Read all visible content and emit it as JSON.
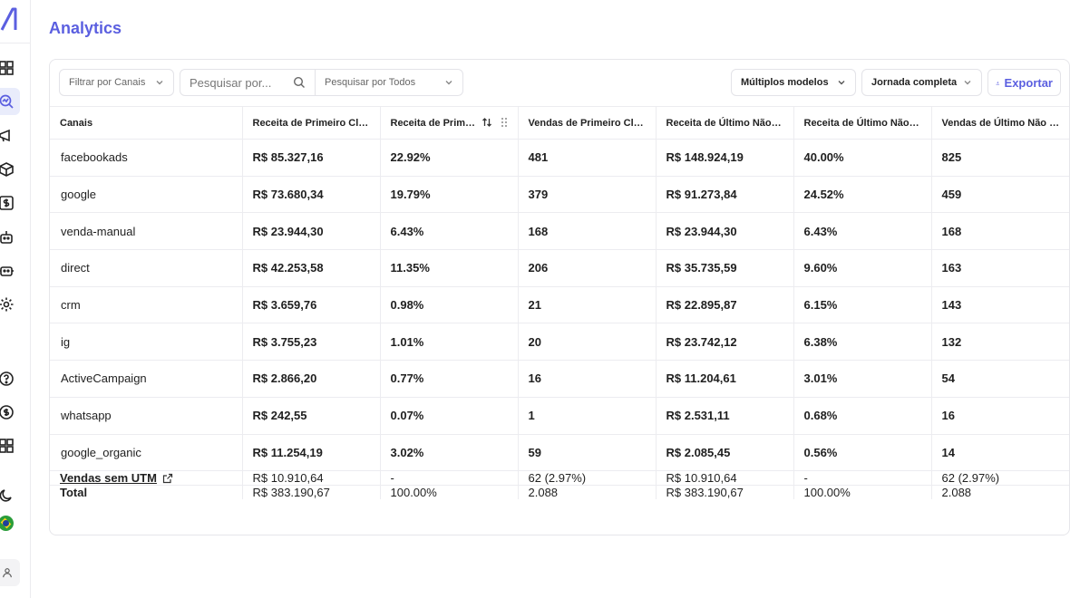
{
  "header": {
    "title": "Analytics"
  },
  "toolbar": {
    "filter_label": "Filtrar por Canais",
    "search_placeholder": "Pesquisar por...",
    "search_scope": "Pesquisar por Todos",
    "model_label": "Múltiplos modelos",
    "journey_label": "Jornada completa",
    "export_label": "Exportar"
  },
  "table": {
    "columns": [
      "Canais",
      "Receita de Primeiro Clique",
      "Receita de Primei...",
      "Vendas de Primeiro Clique",
      "Receita de Último Não Di...",
      "Receita de Último Não Di...",
      "Vendas de Último Não D..."
    ],
    "rows": [
      [
        "facebookads",
        "R$ 85.327,16",
        "22.92%",
        "481",
        "R$ 148.924,19",
        "40.00%",
        "825"
      ],
      [
        "google",
        "R$ 73.680,34",
        "19.79%",
        "379",
        "R$ 91.273,84",
        "24.52%",
        "459"
      ],
      [
        "venda-manual",
        "R$ 23.944,30",
        "6.43%",
        "168",
        "R$ 23.944,30",
        "6.43%",
        "168"
      ],
      [
        "direct",
        "R$ 42.253,58",
        "11.35%",
        "206",
        "R$ 35.735,59",
        "9.60%",
        "163"
      ],
      [
        "crm",
        "R$ 3.659,76",
        "0.98%",
        "21",
        "R$ 22.895,87",
        "6.15%",
        "143"
      ],
      [
        "ig",
        "R$ 3.755,23",
        "1.01%",
        "20",
        "R$ 23.742,12",
        "6.38%",
        "132"
      ],
      [
        "ActiveCampaign",
        "R$ 2.866,20",
        "0.77%",
        "16",
        "R$ 11.204,61",
        "3.01%",
        "54"
      ],
      [
        "whatsapp",
        "R$ 242,55",
        "0.07%",
        "1",
        "R$ 2.531,11",
        "0.68%",
        "16"
      ],
      [
        "google_organic",
        "R$ 11.254,19",
        "3.02%",
        "59",
        "R$ 2.085,45",
        "0.56%",
        "14"
      ]
    ],
    "utm_row": [
      "Vendas sem UTM",
      "R$ 10.910,64",
      "-",
      "62 (2.97%)",
      "R$ 10.910,64",
      "-",
      "62 (2.97%)"
    ],
    "total_row": [
      "Total",
      "R$ 383.190,67",
      "100.00%",
      "2.088",
      "R$ 383.190,67",
      "100.00%",
      "2.088"
    ]
  },
  "colors": {
    "accent": "#5b5fe0",
    "active_bg": "#e9ecfb",
    "border": "#ececf0"
  }
}
